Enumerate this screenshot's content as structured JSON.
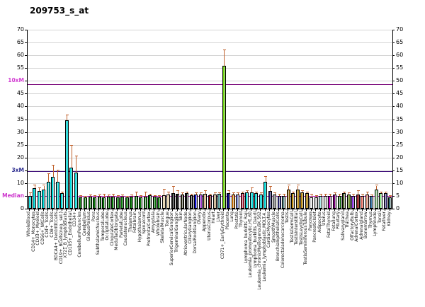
{
  "title": "209753_s_at",
  "axis": {
    "ymin": 0,
    "ymax": 70,
    "step": 5,
    "tick_overrides": {
      "50": "10xM",
      "15": "3xM",
      "5": "Median"
    },
    "override_colors": {
      "50": "#d23dd2",
      "15": "#2b2b8f",
      "5": "#cc33cc"
    }
  },
  "error_bar_color": "#c0622d",
  "chart_data": {
    "type": "bar",
    "title": "209753_s_at",
    "xlabel": "",
    "ylabel": "",
    "ylim": [
      0,
      70
    ],
    "grid": true,
    "legend": "none",
    "reference_lines": [
      {
        "label": "10xM",
        "value": 48.8,
        "line_color": "#7d0d7d",
        "label_color": "#d23dd2"
      },
      {
        "label": "3xM",
        "value": 14.64,
        "line_color": "#3c0a78",
        "label_color": "#2b2b8f"
      },
      {
        "label": "Median",
        "value": 4.88,
        "line_color": "#aa10aa",
        "label_color": "#cc33cc"
      }
    ],
    "categories": [
      "WholeBlood",
      "CD14+_Monocytes",
      "CD33+_Myeloid",
      "CD56+_NKCells",
      "CD4+_Tcells",
      "CD8+_Tcells",
      "BDCA4+_DentriticCells",
      "CD19+_BCells(neg._sel.)",
      "X721_B_lymphoblasts",
      "CD105+_Endothelial",
      "CD34+",
      "CerebellumPeduncles",
      "Cerebellum",
      "GlobusPalidus",
      "Pons",
      "SubthalamicNucleus",
      "TemporalLobe",
      "OccipitalLobe",
      "CingulateCortex",
      "MedullaOblongata",
      "ParietalLobe",
      "Caudatenucleus",
      "Thalamus",
      "Fetalbrain",
      "Hypothalamus",
      "Spinalcord",
      "PrefrontalCortex",
      "Amygdala",
      "Wholebrain",
      "SkeletalMuscle",
      "Tongue",
      "SuperiorCervicalGanglion",
      "TrigeminalGanglion",
      "Skin",
      "AtrioventricularNode",
      "CiliaryGanglion",
      "DorsalRootGanglion",
      "Ovary",
      "Appendix",
      "UterusCorpus",
      "Heart",
      "Liver",
      "CD71+_EarlyErythroid",
      "Placenta",
      "Lung",
      "Prostate",
      "Thyroid",
      "Lymphoma_burkitts_Raji",
      "Leukemia_promyelocytic.HL.60",
      "Lymphoma_burkitts_Daudi",
      "Leukemia_chronicMyelogenousK.562",
      "Leukemia_lymphoblastic.MOLT.4.",
      "CardiacMyocytes",
      "SmoothMuscle",
      "BronchialEpithelialCells",
      "Colorectaladenocarcinoma",
      "Testis",
      "TestisGermCell",
      "TestisInterstitial",
      "TestisLeydigCell",
      "TestisSeminiferousTubule",
      "Pancreas",
      "PancreaticIslet",
      "Adipocyte",
      "Uterus",
      "FetalThyroid",
      "Fetallung",
      "Pituitary",
      "Salivarygland",
      "Trachea",
      "OlfactoryBulb",
      "AdrenalCortex",
      "Adrenalgland",
      "Bonemarrow",
      "Thymus",
      "Lymphnode",
      "Tonsil",
      "Fetalliver",
      "Kidney"
    ],
    "values": [
      5,
      8,
      7,
      7.5,
      10.5,
      12.5,
      10.5,
      6,
      34.5,
      16,
      14,
      4.5,
      4.3,
      4.6,
      4.4,
      4.7,
      4.5,
      4.6,
      4.8,
      4.5,
      4.6,
      4.4,
      4.7,
      4.9,
      4.5,
      4.8,
      5.2,
      4.6,
      4.5,
      5.2,
      5.5,
      6,
      5.8,
      5.5,
      6,
      5.2,
      5.5,
      5.5,
      5.8,
      5.2,
      5.5,
      5.8,
      56,
      6,
      5.5,
      5.5,
      6,
      6.5,
      6.5,
      6,
      5.5,
      10.5,
      7,
      5.5,
      5,
      5,
      7.5,
      6,
      7.5,
      6.5,
      6,
      4.5,
      4.5,
      5,
      5,
      5,
      5.5,
      5,
      6,
      5.5,
      5,
      5.5,
      5,
      5.5,
      5,
      7.5,
      6,
      6,
      4.5
    ],
    "errors_high": [
      6,
      9,
      8,
      9,
      13.5,
      17,
      15,
      6.5,
      36.5,
      24.5,
      20.5,
      5,
      4.8,
      5.2,
      4.9,
      5.4,
      5.6,
      5.2,
      5.5,
      5,
      5.3,
      4.8,
      5.2,
      6.3,
      5,
      6.5,
      5.6,
      5,
      4.9,
      7.5,
      6.5,
      8.5,
      7,
      6,
      6.5,
      5.6,
      6,
      6,
      7,
      5.6,
      6,
      6.2,
      62,
      7,
      6,
      6,
      6.5,
      7,
      8,
      6.5,
      6,
      12.5,
      8.5,
      6,
      5.5,
      5.5,
      9,
      6.5,
      9,
      7,
      6.5,
      5.5,
      5,
      5.5,
      5.5,
      5.5,
      6,
      5.5,
      6.3,
      6,
      5.5,
      7,
      5.5,
      6.5,
      5.3,
      9,
      6.5,
      6.3,
      5
    ],
    "colors": [
      "#00dede",
      "#00dede",
      "#00dede",
      "#00dede",
      "#00dede",
      "#00dede",
      "#00dede",
      "#00dede",
      "#00dede",
      "#00dede",
      "#00dede",
      "#0a7a0a",
      "#0a7a0a",
      "#0a7a0a",
      "#0a7a0a",
      "#0a7a0a",
      "#0a7a0a",
      "#0a7a0a",
      "#0a7a0a",
      "#0a7a0a",
      "#0a7a0a",
      "#0a7a0a",
      "#0a7a0a",
      "#0a7a0a",
      "#0a7a0a",
      "#0a7a0a",
      "#0a7a0a",
      "#0a7a0a",
      "#0a7a0a",
      "#f0dcb0",
      "#f0dcb0",
      "#111111",
      "#111111",
      "#2b2b11",
      "#111111",
      "#111111",
      "#1414e0",
      "#9933cc",
      "#deb887",
      "#8b0000",
      "#d2b48c",
      "#4f9e9e",
      "#66d400",
      "#000080",
      "#ff8c00",
      "#8f9ce0",
      "#dc2040",
      "#00dede",
      "#00dede",
      "#00dede",
      "#00dede",
      "#00dede",
      "#191970",
      "#a9a9a9",
      "#333399",
      "#5f8f8f",
      "#a87408",
      "#b8860b",
      "#b8860b",
      "#b8860b",
      "#b8860b",
      "#f5f5f5",
      "#d3d3d3",
      "#afeeee",
      "#ffffff",
      "#cc00cc",
      "#800080",
      "#228b22",
      "#556b2f",
      "#6b8e23",
      "#8a2be2",
      "#8b0000",
      "#fa8072",
      "#e9967a",
      "#4682b4",
      "#98e698",
      "#90ee90",
      "#483d8b",
      "#2f6f6f"
    ]
  }
}
